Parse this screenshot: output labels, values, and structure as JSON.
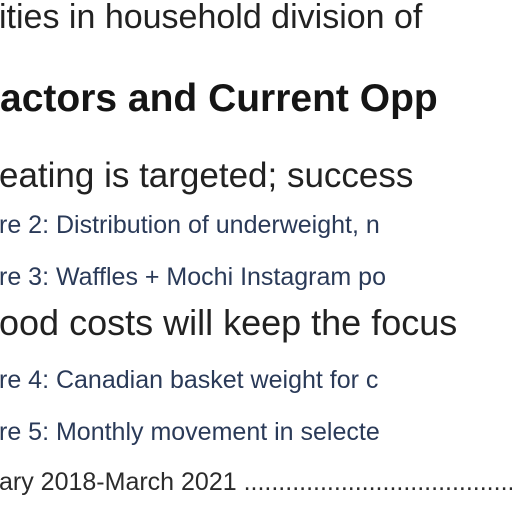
{
  "lines": {
    "line1": "ities in household division of",
    "line2": "actors and Current Opp",
    "line3": "eating is targeted; success",
    "line4": "re 2: Distribution of underweight, n",
    "line5": "re 3: Waffles + Mochi Instagram po",
    "line6": "ood costs will keep the focus",
    "line7": "re 4: Canadian basket weight for c",
    "line8": "re 5: Monthly movement in selecte",
    "line9": "ary 2018-March 2021 ........................................"
  }
}
